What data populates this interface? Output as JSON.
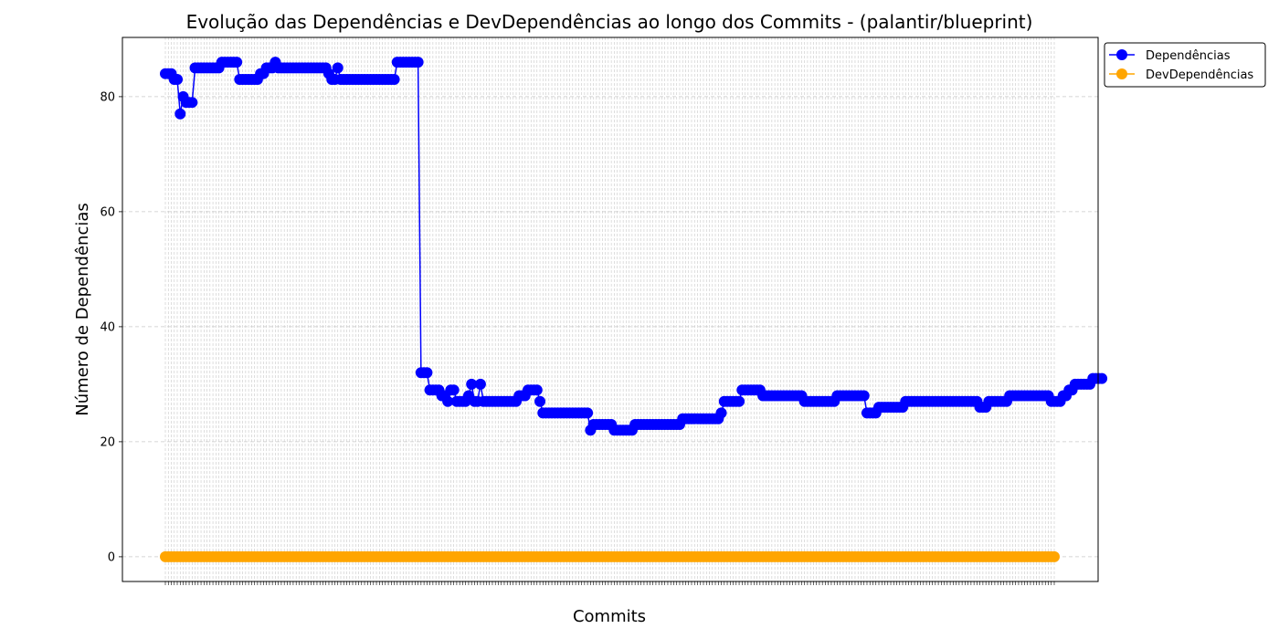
{
  "chart_data": {
    "type": "line",
    "title": "Evolução das Dependências e DevDependências ao longo dos Commits - (palantir/blueprint)",
    "xlabel": "Commits",
    "ylabel": "Número de Dependências",
    "ylim": [
      -4.3,
      90.3
    ],
    "yticks": [
      0,
      20,
      40,
      60,
      80
    ],
    "grid": true,
    "legend_position": "upper-right-outside",
    "x_count": 300,
    "series": [
      {
        "name": "Dependências",
        "color": "#0000ff",
        "segments": [
          {
            "n": 1,
            "v": 84
          },
          {
            "n": 2,
            "v": 84
          },
          {
            "n": 2,
            "v": 83
          },
          {
            "n": 1,
            "v": 77
          },
          {
            "n": 1,
            "v": 80
          },
          {
            "n": 3,
            "v": 79
          },
          {
            "n": 9,
            "v": 85
          },
          {
            "n": 6,
            "v": 86
          },
          {
            "n": 4,
            "v": 83
          },
          {
            "n": 3,
            "v": 83
          },
          {
            "n": 2,
            "v": 84
          },
          {
            "n": 2,
            "v": 85
          },
          {
            "n": 1,
            "v": 85
          },
          {
            "n": 1,
            "v": 86
          },
          {
            "n": 17,
            "v": 85
          },
          {
            "n": 1,
            "v": 84
          },
          {
            "n": 2,
            "v": 83
          },
          {
            "n": 1,
            "v": 85
          },
          {
            "n": 19,
            "v": 83
          },
          {
            "n": 8,
            "v": 86
          },
          {
            "n": 3,
            "v": 32
          },
          {
            "n": 4,
            "v": 29
          },
          {
            "n": 2,
            "v": 28
          },
          {
            "n": 1,
            "v": 27
          },
          {
            "n": 2,
            "v": 29
          },
          {
            "n": 4,
            "v": 27
          },
          {
            "n": 1,
            "v": 28
          },
          {
            "n": 1,
            "v": 30
          },
          {
            "n": 2,
            "v": 27
          },
          {
            "n": 1,
            "v": 30
          },
          {
            "n": 12,
            "v": 27
          },
          {
            "n": 3,
            "v": 28
          },
          {
            "n": 4,
            "v": 29
          },
          {
            "n": 1,
            "v": 27
          },
          {
            "n": 16,
            "v": 25
          },
          {
            "n": 1,
            "v": 22
          },
          {
            "n": 7,
            "v": 23
          },
          {
            "n": 7,
            "v": 22
          },
          {
            "n": 16,
            "v": 23
          },
          {
            "n": 13,
            "v": 24
          },
          {
            "n": 1,
            "v": 25
          },
          {
            "n": 6,
            "v": 27
          },
          {
            "n": 7,
            "v": 29
          },
          {
            "n": 14,
            "v": 28
          },
          {
            "n": 11,
            "v": 27
          },
          {
            "n": 10,
            "v": 28
          },
          {
            "n": 4,
            "v": 25
          },
          {
            "n": 9,
            "v": 26
          },
          {
            "n": 25,
            "v": 27
          },
          {
            "n": 3,
            "v": 26
          },
          {
            "n": 7,
            "v": 27
          },
          {
            "n": 2,
            "v": 28
          },
          {
            "n": 12,
            "v": 28
          },
          {
            "n": 4,
            "v": 27
          },
          {
            "n": 2,
            "v": 28
          },
          {
            "n": 2,
            "v": 29
          },
          {
            "n": 6,
            "v": 30
          },
          {
            "n": 4,
            "v": 31
          }
        ]
      },
      {
        "name": "DevDependências",
        "color": "#ffa500",
        "segments": [
          {
            "n": 300,
            "v": 0
          }
        ]
      }
    ]
  }
}
